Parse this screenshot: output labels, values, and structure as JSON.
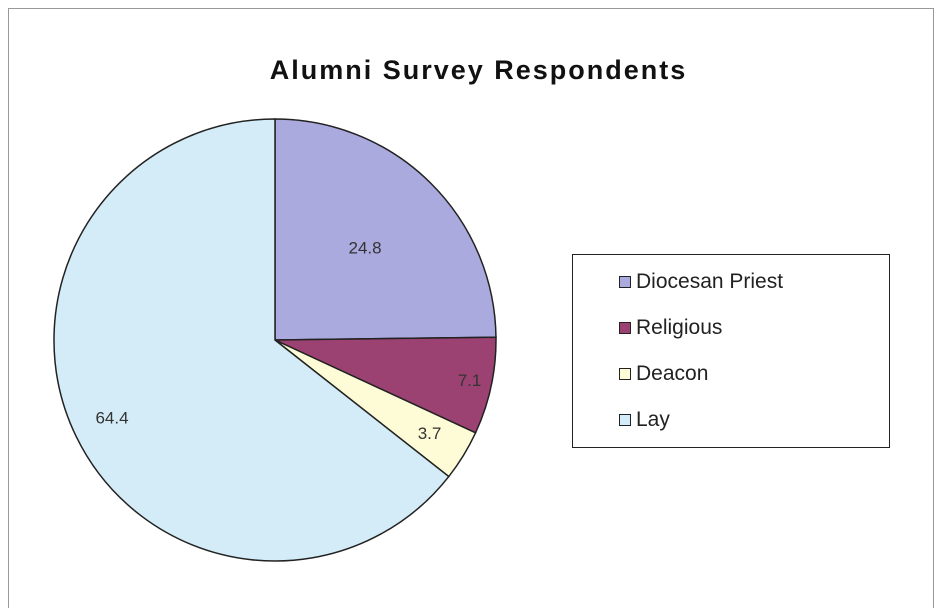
{
  "chart_data": {
    "type": "pie",
    "title": "Alumni Survey Respondents",
    "categories": [
      "Diocesan Priest",
      "Religious",
      "Deacon",
      "Lay"
    ],
    "values": [
      24.8,
      7.1,
      3.7,
      64.4
    ],
    "data_labels": [
      "24.8",
      "7.1",
      "3.7",
      "64.4"
    ],
    "colors": [
      "#aaaadf",
      "#9c4273",
      "#fdfcd6",
      "#d4ecf7"
    ],
    "start_angle": "12 o'clock",
    "direction": "clockwise",
    "legend_position": "right"
  }
}
